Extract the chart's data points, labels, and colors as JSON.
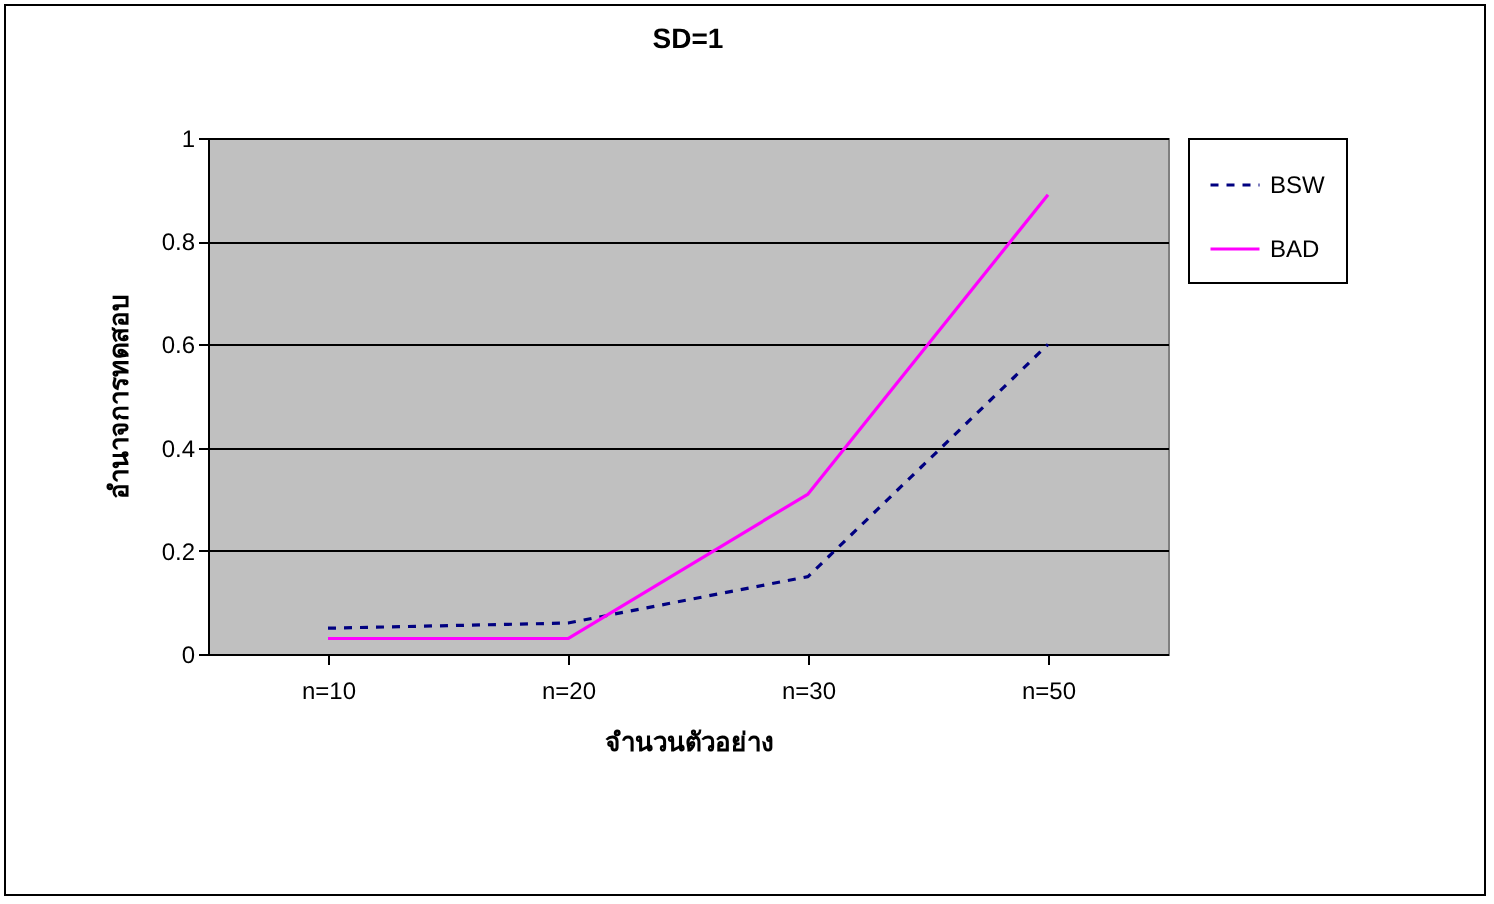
{
  "chart_data": {
    "type": "line",
    "title": "SD=1",
    "xlabel": "จำนวนตัวอย่าง",
    "ylabel": "อำนาจการทดสอบ",
    "categories": [
      "n=10",
      "n=20",
      "n=30",
      "n=50"
    ],
    "series": [
      {
        "name": "BSW",
        "color": "#000080",
        "line_style": "dashed",
        "values": [
          0.05,
          0.06,
          0.15,
          0.6
        ]
      },
      {
        "name": "BAD",
        "color": "#ff00ff",
        "line_style": "solid",
        "values": [
          0.03,
          0.03,
          0.31,
          0.89
        ]
      }
    ],
    "ylim": [
      0,
      1
    ],
    "yticks": [
      0,
      0.2,
      0.4,
      0.6,
      0.8,
      1
    ],
    "grid": "y",
    "legend": "right",
    "marker": "none"
  }
}
